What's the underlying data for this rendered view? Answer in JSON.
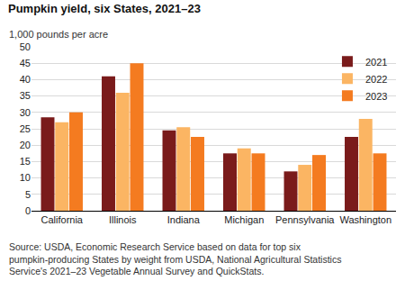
{
  "chart_data": {
    "type": "bar",
    "title": "Pumpkin yield, six States, 2021–23",
    "subtitle": "1,000 pounds per acre",
    "source": [
      "Source: USDA, Economic Research Service based on data for top six",
      "pumpkin-producing States by weight from USDA, National Agricultural Statistics",
      "Service's 2021–23 Vegetable Annual Survey and QuickStats."
    ],
    "categories": [
      "California",
      "Illinois",
      "Indiana",
      "Michigan",
      "Pennsylvania",
      "Washington"
    ],
    "series": [
      {
        "name": "2021",
        "color": "#7a1b1b",
        "values": [
          28.5,
          41,
          24.5,
          17.5,
          12,
          22.5
        ]
      },
      {
        "name": "2022",
        "color": "#fbb563",
        "values": [
          27,
          36,
          25.5,
          19,
          14,
          28
        ]
      },
      {
        "name": "2023",
        "color": "#f47b20",
        "values": [
          30,
          45,
          22.5,
          17.5,
          17,
          17.5
        ]
      }
    ],
    "ylim": [
      0,
      50
    ],
    "yticks": [
      0,
      5,
      10,
      15,
      20,
      25,
      30,
      35,
      40,
      45,
      50
    ],
    "grid": true,
    "legend": "upper right"
  }
}
